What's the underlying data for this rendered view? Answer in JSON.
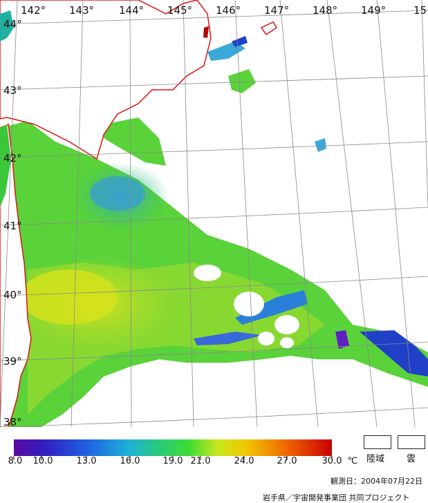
{
  "map": {
    "lon_labels": [
      "142°",
      "143°",
      "144°",
      "145°",
      "146°",
      "147°",
      "148°",
      "149°",
      "15"
    ],
    "lat_labels": [
      "44°",
      "43°",
      "42°",
      "41°",
      "40°",
      "39°",
      "38°"
    ]
  },
  "legend": {
    "ticks": [
      "8.0",
      "10.0",
      "13.0",
      "16.0",
      "19.0",
      "21.0",
      "24.0",
      "27.0",
      "30.0"
    ],
    "unit": "℃",
    "colors": [
      "#5a0aa0",
      "#2030d0",
      "#1ea0e0",
      "#28c8b4",
      "#3cdc32",
      "#c8e61e",
      "#f0c800",
      "#f06400",
      "#c80000"
    ]
  },
  "boxes": {
    "land_label": "陸域",
    "cloud_label": "雲"
  },
  "footer": {
    "date": "観測日：2004年07月22日",
    "credit": "岩手県／宇宙開発事業団 共同プロジェクト"
  }
}
